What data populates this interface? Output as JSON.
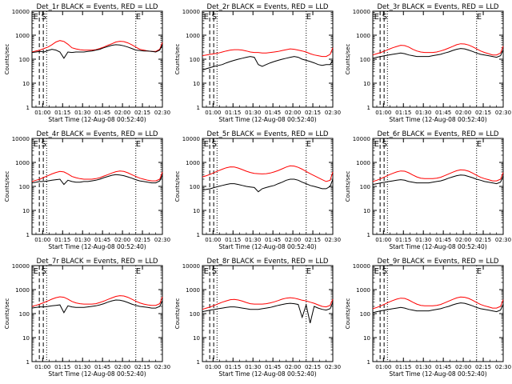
{
  "chart_data": {
    "type": "line",
    "shared": {
      "xlabel": "Start Time (12-Aug-08 00:52:40)",
      "ylabel": "Counts/sec",
      "x_tick_labels": [
        "01:00",
        "01:15",
        "01:30",
        "01:45",
        "02:00",
        "02:15",
        "02:30"
      ],
      "x_tick_minutes": [
        8,
        23,
        38,
        53,
        68,
        83,
        98
      ],
      "xlim_minutes": [
        0,
        98
      ],
      "y_scale": "log",
      "ylim": [
        1,
        10000
      ],
      "y_tick_labels": [
        "1",
        "10",
        "100",
        "1000",
        "10000"
      ],
      "x_minutes": [
        0,
        3,
        6,
        9,
        12,
        15,
        18,
        21,
        24,
        27,
        30,
        33,
        36,
        39,
        42,
        45,
        48,
        51,
        54,
        57,
        60,
        63,
        66,
        69,
        72,
        75,
        78,
        81,
        84,
        87,
        90,
        93,
        96,
        98
      ],
      "series_colors": {
        "events": "#000000",
        "lld": "#ff0000"
      },
      "dashed_lines_minutes": [
        5.5,
        8.5
      ],
      "dotted_lines_minutes": [
        11,
        78
      ],
      "marker_text_left": "E",
      "marker_text_left_minute": 1,
      "marker_text_s": "S",
      "marker_text_s_minute": 7,
      "marker_text_right": "E",
      "marker_text_right_minute": 78
    },
    "panels": [
      {
        "title": "Det_1r BLACK = Events, RED = LLD",
        "series": [
          {
            "name": "Events",
            "values": [
              190,
              200,
              210,
              200,
              230,
              260,
              240,
              200,
              110,
              200,
              190,
              200,
              200,
              200,
              210,
              220,
              240,
              260,
              300,
              340,
              380,
              400,
              390,
              360,
              320,
              280,
              240,
              230,
              220,
              220,
              210,
              200,
              240,
              400
            ]
          },
          {
            "name": "LLD",
            "values": [
              200,
              220,
              240,
              280,
              320,
              400,
              520,
              600,
              550,
              420,
              300,
              270,
              250,
              240,
              240,
              240,
              250,
              280,
              320,
              380,
              440,
              520,
              560,
              540,
              480,
              400,
              320,
              260,
              240,
              220,
              210,
              210,
              260,
              500
            ]
          }
        ]
      },
      {
        "title": "Det_2r BLACK = Events, RED = LLD",
        "series": [
          {
            "name": "Events",
            "values": [
              35,
              40,
              45,
              50,
              55,
              60,
              70,
              80,
              90,
              100,
              110,
              120,
              130,
              120,
              60,
              50,
              60,
              70,
              80,
              90,
              100,
              110,
              120,
              130,
              120,
              100,
              90,
              80,
              70,
              60,
              55,
              60,
              60,
              90
            ]
          },
          {
            "name": "LLD",
            "values": [
              140,
              150,
              160,
              170,
              180,
              200,
              220,
              240,
              250,
              250,
              240,
              220,
              200,
              190,
              190,
              180,
              180,
              190,
              200,
              210,
              230,
              250,
              270,
              260,
              240,
              220,
              200,
              170,
              150,
              140,
              130,
              130,
              160,
              300
            ]
          }
        ]
      },
      {
        "title": "Det_3r BLACK = Events, RED = LLD",
        "series": [
          {
            "name": "Events",
            "values": [
              110,
              120,
              130,
              140,
              150,
              160,
              170,
              180,
              170,
              150,
              140,
              130,
              130,
              130,
              130,
              140,
              150,
              160,
              180,
              200,
              230,
              260,
              280,
              270,
              240,
              210,
              180,
              160,
              150,
              140,
              130,
              120,
              140,
              250
            ]
          },
          {
            "name": "LLD",
            "values": [
              150,
              170,
              190,
              220,
              260,
              300,
              340,
              380,
              370,
              320,
              260,
              220,
              200,
              190,
              190,
              190,
              200,
              220,
              250,
              290,
              340,
              400,
              440,
              430,
              390,
              330,
              270,
              220,
              190,
              170,
              150,
              150,
              180,
              350
            ]
          }
        ]
      },
      {
        "title": "Det_4r BLACK = Events, RED = LLD",
        "series": [
          {
            "name": "Events",
            "values": [
              140,
              150,
              160,
              160,
              170,
              180,
              190,
              200,
              120,
              180,
              160,
              150,
              150,
              160,
              160,
              170,
              180,
              200,
              230,
              260,
              290,
              310,
              300,
              280,
              250,
              220,
              190,
              170,
              160,
              150,
              140,
              140,
              170,
              300
            ]
          },
          {
            "name": "LLD",
            "values": [
              160,
              180,
              200,
              240,
              280,
              330,
              380,
              420,
              400,
              330,
              260,
              230,
              210,
              200,
              200,
              200,
              210,
              230,
              270,
              310,
              360,
              410,
              440,
              420,
              370,
              310,
              260,
              220,
              200,
              180,
              170,
              170,
              200,
              400
            ]
          }
        ]
      },
      {
        "title": "Det_5r BLACK = Events, RED = LLD",
        "series": [
          {
            "name": "Events",
            "values": [
              70,
              75,
              80,
              90,
              100,
              110,
              120,
              130,
              130,
              120,
              110,
              100,
              95,
              90,
              60,
              80,
              90,
              100,
              110,
              130,
              150,
              180,
              200,
              200,
              180,
              150,
              130,
              110,
              100,
              90,
              80,
              80,
              100,
              200
            ]
          },
          {
            "name": "LLD",
            "values": [
              250,
              280,
              320,
              380,
              450,
              520,
              600,
              650,
              640,
              580,
              500,
              430,
              380,
              350,
              340,
              330,
              340,
              360,
              400,
              460,
              540,
              640,
              720,
              700,
              620,
              520,
              420,
              340,
              280,
              230,
              190,
              160,
              180,
              400
            ]
          }
        ]
      },
      {
        "title": "Det_6r BLACK = Events, RED = LLD",
        "series": [
          {
            "name": "Events",
            "values": [
              120,
              130,
              140,
              150,
              160,
              170,
              180,
              190,
              180,
              160,
              150,
              140,
              140,
              140,
              140,
              150,
              160,
              170,
              190,
              220,
              250,
              280,
              300,
              290,
              260,
              230,
              200,
              180,
              160,
              150,
              140,
              130,
              150,
              280
            ]
          },
          {
            "name": "LLD",
            "values": [
              160,
              180,
              210,
              250,
              300,
              350,
              400,
              440,
              430,
              370,
              300,
              250,
              220,
              210,
              210,
              210,
              220,
              240,
              280,
              330,
              390,
              450,
              490,
              480,
              430,
              360,
              290,
              240,
              210,
              190,
              170,
              170,
              200,
              380
            ]
          }
        ]
      },
      {
        "title": "Det_7r BLACK = Events, RED = LLD",
        "series": [
          {
            "name": "Events",
            "values": [
              170,
              180,
              190,
              190,
              200,
              210,
              220,
              230,
              110,
              210,
              190,
              180,
              180,
              180,
              190,
              200,
              210,
              230,
              260,
              300,
              340,
              370,
              360,
              330,
              290,
              250,
              220,
              200,
              190,
              180,
              170,
              170,
              200,
              350
            ]
          },
          {
            "name": "LLD",
            "values": [
              200,
              220,
              250,
              290,
              340,
              400,
              460,
              500,
              480,
              400,
              320,
              280,
              260,
              250,
              250,
              250,
              260,
              290,
              330,
              390,
              450,
              520,
              560,
              540,
              480,
              400,
              330,
              280,
              250,
              230,
              220,
              220,
              260,
              500
            ]
          }
        ]
      },
      {
        "title": "Det_8r BLACK = Events, RED = LLD",
        "series": [
          {
            "name": "Events",
            "values": [
              120,
              130,
              140,
              150,
              160,
              170,
              180,
              190,
              190,
              180,
              170,
              160,
              150,
              150,
              150,
              160,
              170,
              180,
              200,
              220,
              240,
              260,
              270,
              260,
              240,
              70,
              230,
              40,
              200,
              170,
              150,
              140,
              160,
              300
            ]
          },
          {
            "name": "LLD",
            "values": [
              150,
              170,
              190,
              220,
              260,
              300,
              340,
              380,
              390,
              370,
              330,
              290,
              260,
              250,
              250,
              250,
              260,
              280,
              310,
              350,
              400,
              440,
              460,
              440,
              400,
              360,
              340,
              300,
              270,
              230,
              200,
              190,
              220,
              400
            ]
          }
        ]
      },
      {
        "title": "Det_9r BLACK = Events, RED = LLD",
        "series": [
          {
            "name": "Events",
            "values": [
              110,
              120,
              130,
              140,
              150,
              160,
              170,
              180,
              170,
              150,
              140,
              130,
              130,
              130,
              130,
              140,
              150,
              160,
              180,
              200,
              230,
              260,
              280,
              270,
              240,
              210,
              180,
              160,
              150,
              140,
              130,
              120,
              140,
              250
            ]
          },
          {
            "name": "LLD",
            "values": [
              160,
              180,
              210,
              250,
              300,
              350,
              400,
              440,
              430,
              370,
              300,
              250,
              220,
              210,
              210,
              210,
              220,
              240,
              280,
              330,
              390,
              450,
              490,
              480,
              430,
              360,
              290,
              240,
              210,
              190,
              170,
              170,
              200,
              380
            ]
          }
        ]
      }
    ]
  }
}
